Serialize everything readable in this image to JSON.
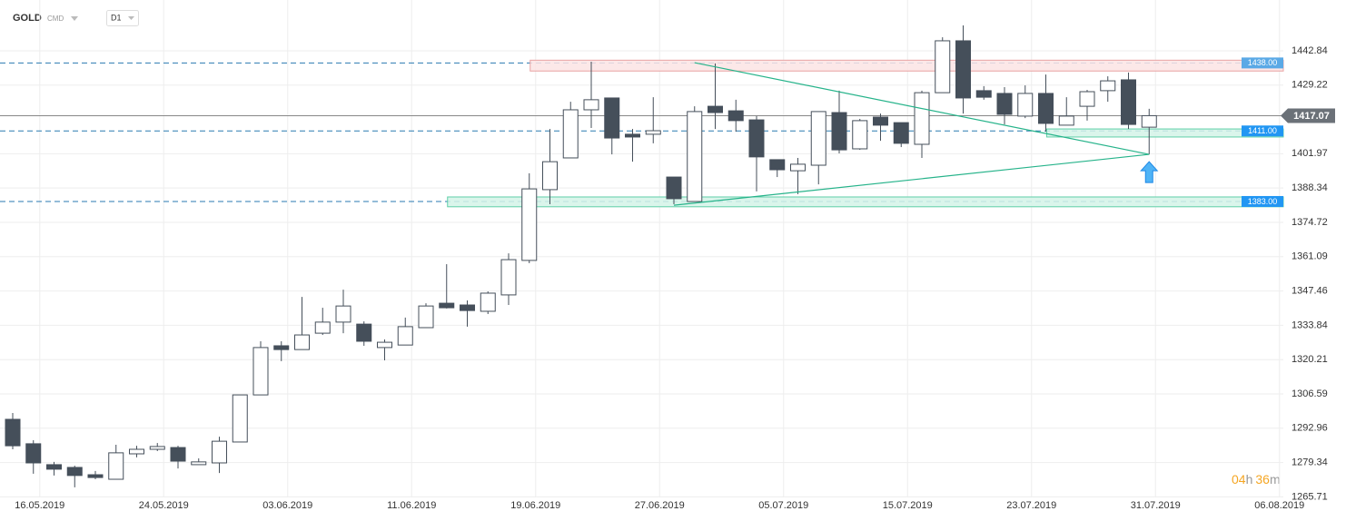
{
  "header": {
    "symbol": "GOLD",
    "market": "CMD",
    "interval": "D1"
  },
  "countdown": {
    "hours": "04",
    "hours_unit": "h",
    "minutes": "36",
    "minutes_unit": "m"
  },
  "chart_data": {
    "type": "candlestick",
    "up_color": "#ffffff",
    "down_color": "#454f5a",
    "categories": [
      null,
      "16.05.2019",
      null,
      null,
      null,
      null,
      null,
      "24.05.2019",
      null,
      null,
      null,
      null,
      null,
      "03.06.2019",
      null,
      null,
      null,
      null,
      null,
      "11.06.2019",
      null,
      null,
      null,
      null,
      null,
      "19.06.2019",
      null,
      null,
      null,
      null,
      null,
      "27.06.2019",
      null,
      null,
      null,
      null,
      null,
      "05.07.2019",
      null,
      null,
      null,
      null,
      null,
      "15.07.2019",
      null,
      null,
      null,
      null,
      null,
      "23.07.2019",
      null,
      null,
      null,
      null,
      null,
      "31.07.2019",
      null,
      null,
      null,
      null,
      null,
      "06.08.2019"
    ],
    "open": [
      1296.5,
      1286.8,
      1278.5,
      1277.4,
      1274.5,
      1272.7,
      1282.8,
      1284.6,
      1285.3,
      1278.5,
      1279.2,
      1287.5,
      1306.2,
      1325.7,
      1324.2,
      1330.7,
      1335.1,
      1334.3,
      1325.0,
      1326.0,
      1332.9,
      1342.6,
      1341.9,
      1339.4,
      1345.9,
      1359.6,
      1387.7,
      1400.3,
      1419.4,
      1424.1,
      1409.7,
      1409.7,
      1392.7,
      1383.0,
      1420.8,
      1419.0,
      1415.4,
      1399.6,
      1395.2,
      1397.4,
      1418.3,
      1403.9,
      1416.5,
      1414.3,
      1405.7,
      1426.2,
      1446.8,
      1427.0,
      1425.9,
      1416.9,
      1425.9,
      1413.3,
      1420.8,
      1427.0,
      1431.3,
      1412.5,
      null,
      null,
      null,
      null,
      null,
      null
    ],
    "high": [
      1299.0,
      1288.2,
      1279.6,
      1278.1,
      1276.0,
      1286.4,
      1286.0,
      1287.1,
      1286.0,
      1281.0,
      1289.6,
      1306.2,
      1327.5,
      1327.5,
      1345.1,
      1340.8,
      1348.0,
      1335.4,
      1328.2,
      1336.9,
      1342.6,
      1358.1,
      1343.7,
      1347.3,
      1362.4,
      1394.2,
      1411.8,
      1422.6,
      1438.5,
      1424.1,
      1411.8,
      1424.4,
      1392.7,
      1420.8,
      1437.8,
      1423.4,
      1416.9,
      1399.6,
      1400.3,
      1418.7,
      1427.0,
      1415.8,
      1417.9,
      1414.3,
      1427.0,
      1448.2,
      1452.9,
      1428.8,
      1428.4,
      1429.1,
      1433.4,
      1424.4,
      1427.3,
      1432.7,
      1434.2,
      1419.8,
      null,
      null,
      null,
      null,
      null,
      null
    ],
    "low": [
      1284.6,
      1274.9,
      1274.2,
      1269.5,
      1272.7,
      1272.7,
      1281.4,
      1283.9,
      1277.0,
      1278.5,
      1275.2,
      1287.5,
      1306.2,
      1319.6,
      1324.2,
      1330.0,
      1330.7,
      1325.7,
      1319.9,
      1326.0,
      1332.9,
      1340.5,
      1333.3,
      1338.3,
      1341.9,
      1358.5,
      1381.9,
      1400.3,
      1412.2,
      1401.7,
      1398.8,
      1406.1,
      1381.9,
      1383.0,
      1411.8,
      1410.7,
      1387.0,
      1392.7,
      1385.9,
      1389.8,
      1402.1,
      1403.5,
      1407.1,
      1404.6,
      1400.3,
      1426.2,
      1417.9,
      1423.4,
      1413.6,
      1416.1,
      1410.7,
      1413.3,
      1415.1,
      1422.6,
      1411.8,
      1401.7,
      null,
      null,
      null,
      null,
      null,
      null
    ],
    "close": [
      1286.0,
      1279.2,
      1276.7,
      1274.2,
      1273.4,
      1283.2,
      1284.6,
      1285.7,
      1279.9,
      1279.6,
      1287.8,
      1306.2,
      1325.0,
      1324.2,
      1330.0,
      1335.1,
      1341.5,
      1327.5,
      1327.1,
      1333.3,
      1341.5,
      1340.8,
      1339.7,
      1346.6,
      1359.9,
      1388.0,
      1398.8,
      1419.4,
      1423.4,
      1408.2,
      1408.6,
      1411.1,
      1384.1,
      1418.7,
      1418.3,
      1415.1,
      1400.7,
      1395.6,
      1397.8,
      1418.7,
      1403.5,
      1415.1,
      1413.3,
      1406.1,
      1426.2,
      1446.8,
      1424.1,
      1424.4,
      1417.6,
      1425.9,
      1414.0,
      1416.9,
      1426.6,
      1430.9,
      1413.6,
      1417.07,
      null,
      null,
      null,
      null,
      null,
      null
    ],
    "ylim": [
      1265.5,
      1463
    ],
    "yticks": [
      1442.84,
      1429.22,
      1401.97,
      1388.34,
      1374.72,
      1361.09,
      1347.46,
      1333.84,
      1320.21,
      1306.59,
      1292.96,
      1279.34,
      1265.71
    ],
    "grid": true,
    "last_price": 1417.07,
    "levels": [
      {
        "value": 1438,
        "label": "1438.00",
        "upper": 1439.1,
        "lower": 1434.8,
        "color": "#e8a3a3",
        "fill": "#fce4e4",
        "tag_color": "#5aa9e6"
      },
      {
        "value": 1411,
        "label": "1411.00",
        "upper": 1411.8,
        "lower": 1408.6,
        "color": "#5fcfa8",
        "fill": "#d3f3e7",
        "tag_color": "#2196f3"
      },
      {
        "value": 1383,
        "label": "1383.00",
        "upper": 1384.8,
        "lower": 1380.9,
        "color": "#5fcfa8",
        "fill": "#d3f3e7",
        "tag_color": "#2196f3"
      }
    ],
    "trendlines": [
      {
        "from": [
          33,
          1438.1
        ],
        "to": [
          55,
          1401.7
        ],
        "color": "#26b38a"
      },
      {
        "from": [
          32,
          1381.5
        ],
        "to": [
          55,
          1401.7
        ],
        "color": "#26b38a"
      }
    ]
  }
}
